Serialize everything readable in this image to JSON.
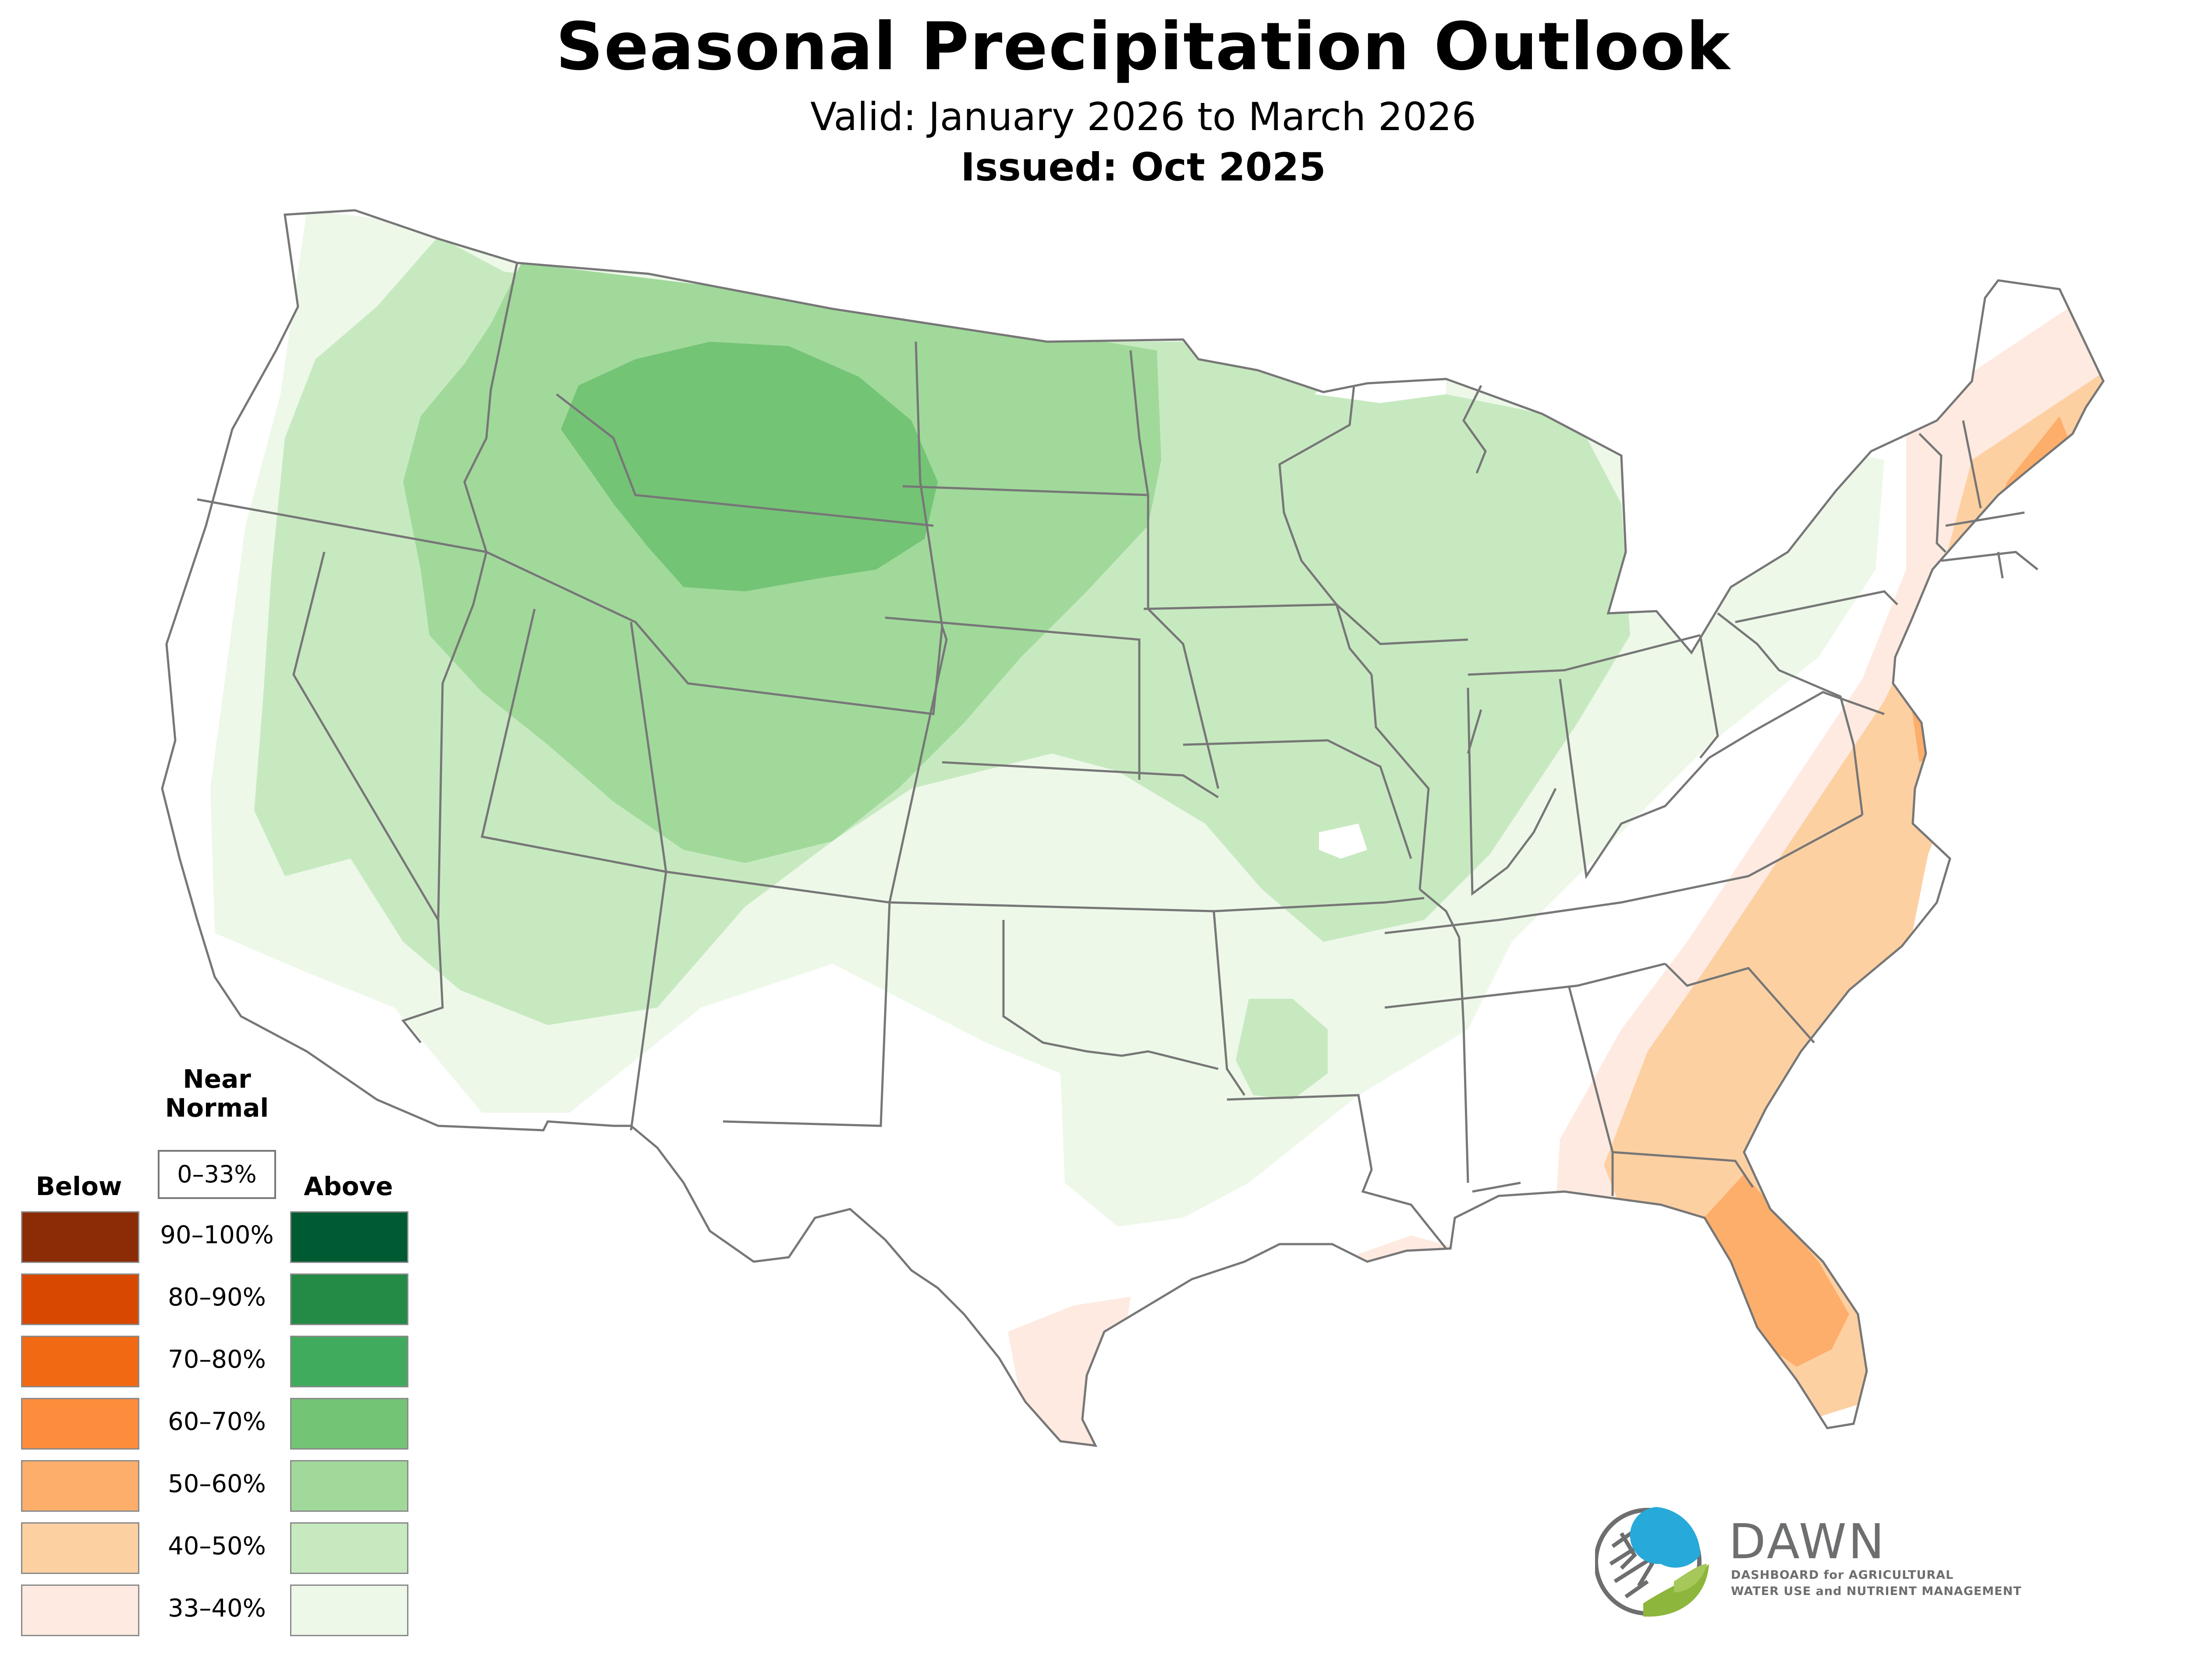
{
  "header": {
    "title": "Seasonal Precipitation Outlook",
    "valid": "Valid: January 2026 to March 2026",
    "issued": "Issued: Oct 2025"
  },
  "legend": {
    "near_normal_label_line1": "Near",
    "near_normal_label_line2": "Normal",
    "near_normal_range": "0–33%",
    "below_label": "Below",
    "above_label": "Above",
    "ranges": [
      "90–100%",
      "80–90%",
      "70–80%",
      "60–70%",
      "50–60%",
      "40–50%",
      "33–40%"
    ],
    "below_colors": [
      "#8b2c07",
      "#d94801",
      "#f16913",
      "#fd8d3c",
      "#fdae6b",
      "#fdd0a2",
      "#feeae0"
    ],
    "above_colors": [
      "#005a32",
      "#238b45",
      "#41ab5d",
      "#74c476",
      "#a1d99b",
      "#c7e9c0",
      "#edf8e9"
    ]
  },
  "logo": {
    "name": "DAWN",
    "tagline_line1": "DASHBOARD for AGRICULTURAL",
    "tagline_line2": "WATER USE and NUTRIENT MANAGEMENT",
    "icon": "dawn-logo-icon"
  }
}
